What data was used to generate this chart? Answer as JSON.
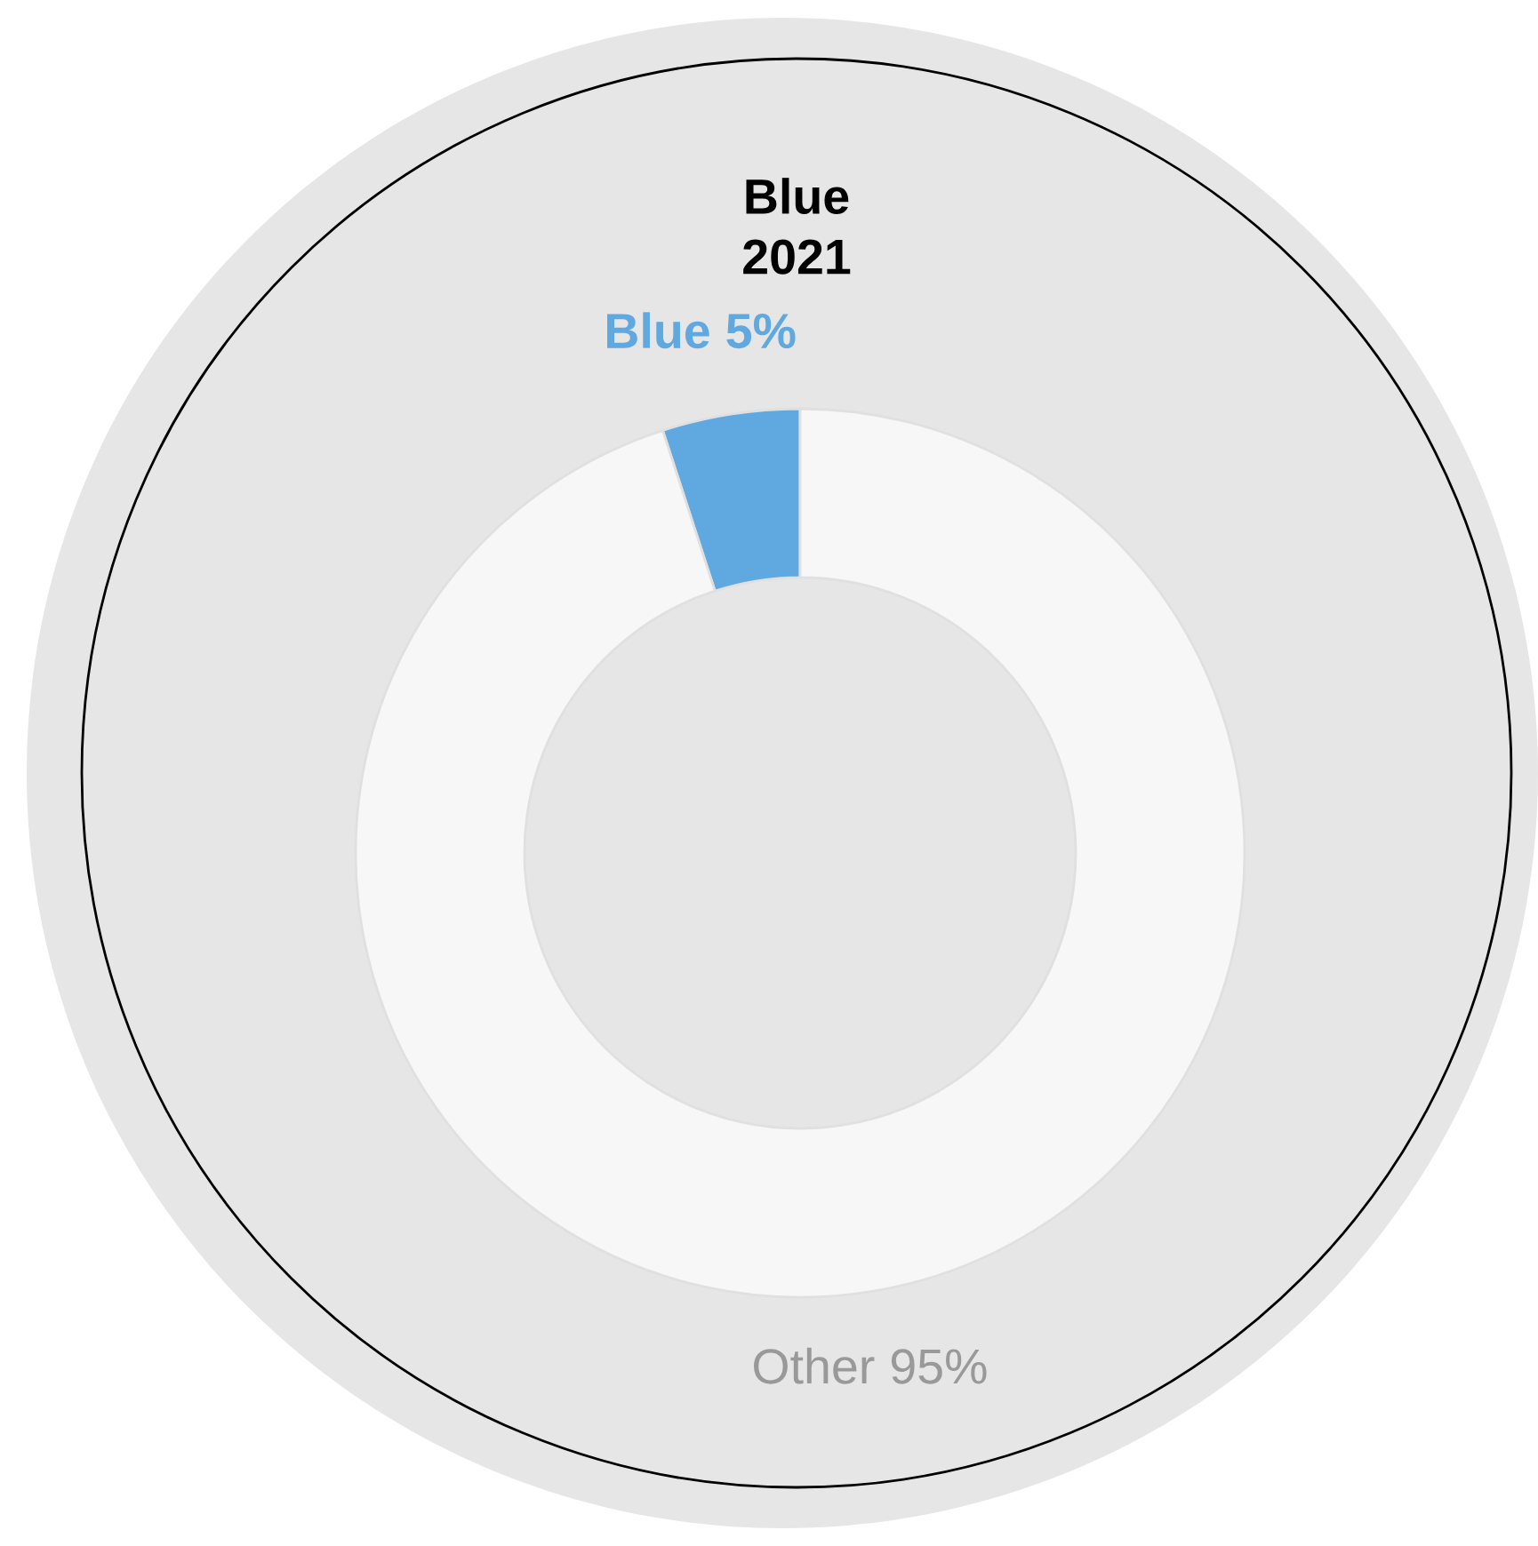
{
  "chart_data": {
    "type": "donut",
    "title": "Blue\n2021",
    "categories": [
      "Blue",
      "Other"
    ],
    "values": [
      5,
      95
    ],
    "colors": [
      "#5fa8e0",
      "#f7f7f7"
    ],
    "value_labels": [
      "5%",
      "95%"
    ],
    "legend": false
  }
}
